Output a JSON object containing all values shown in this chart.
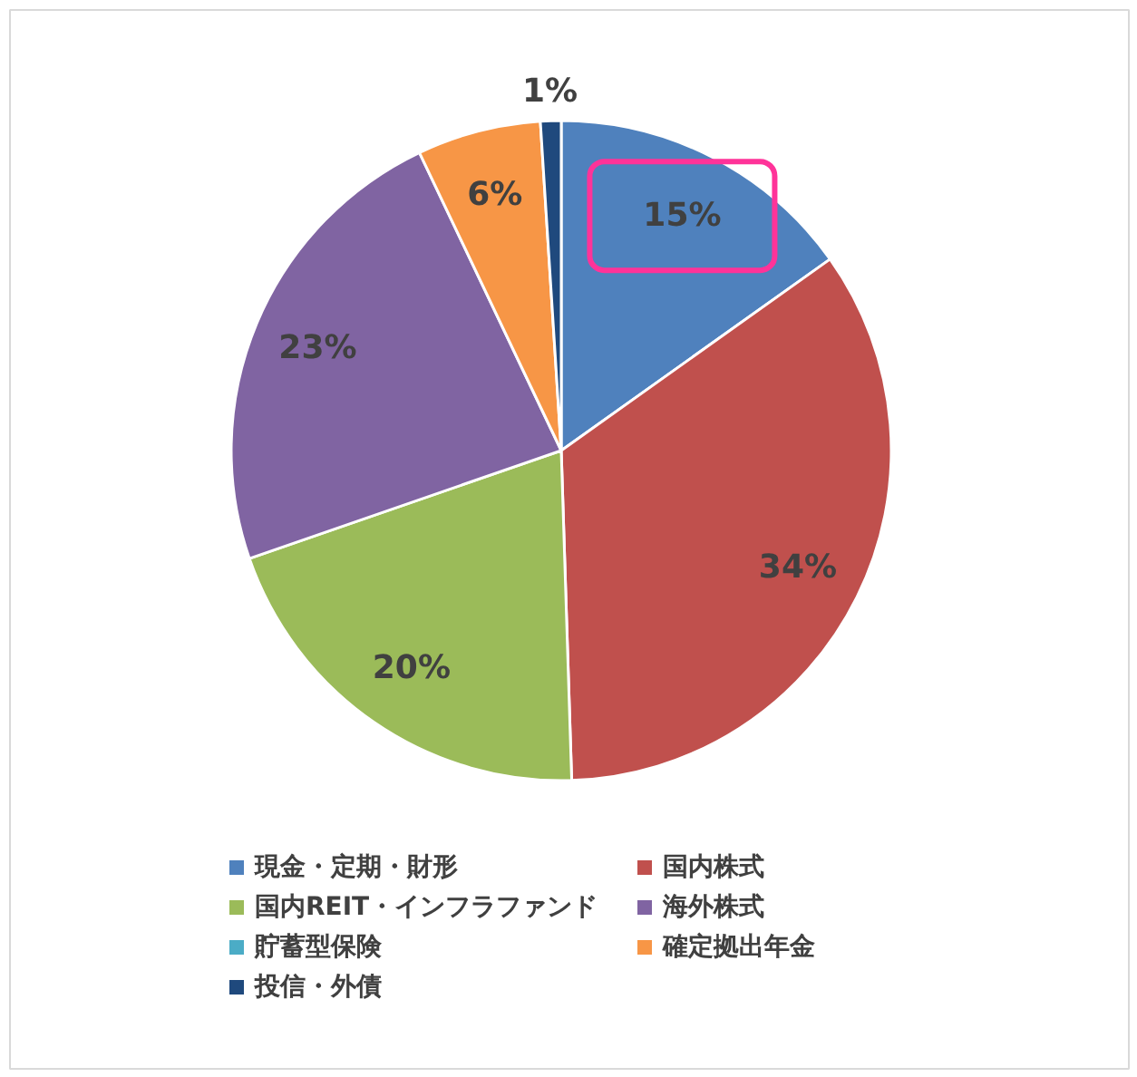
{
  "chart_data": {
    "type": "pie",
    "categories": [
      "現金・定期・財形",
      "国内株式",
      "国内REIT・インフラファンド",
      "海外株式",
      "貯蓄型保険",
      "確定拠出年金",
      "投信・外債"
    ],
    "values": [
      15,
      34,
      20,
      23,
      0,
      6,
      1
    ],
    "colors": [
      "#4f81bd",
      "#c0504d",
      "#9bbb59",
      "#8064a2",
      "#4bacc6",
      "#f79646",
      "#1f497d"
    ],
    "value_labels": [
      "15%",
      "34%",
      "20%",
      "23%",
      null,
      "6%",
      "1%"
    ],
    "legend": "bottom"
  }
}
